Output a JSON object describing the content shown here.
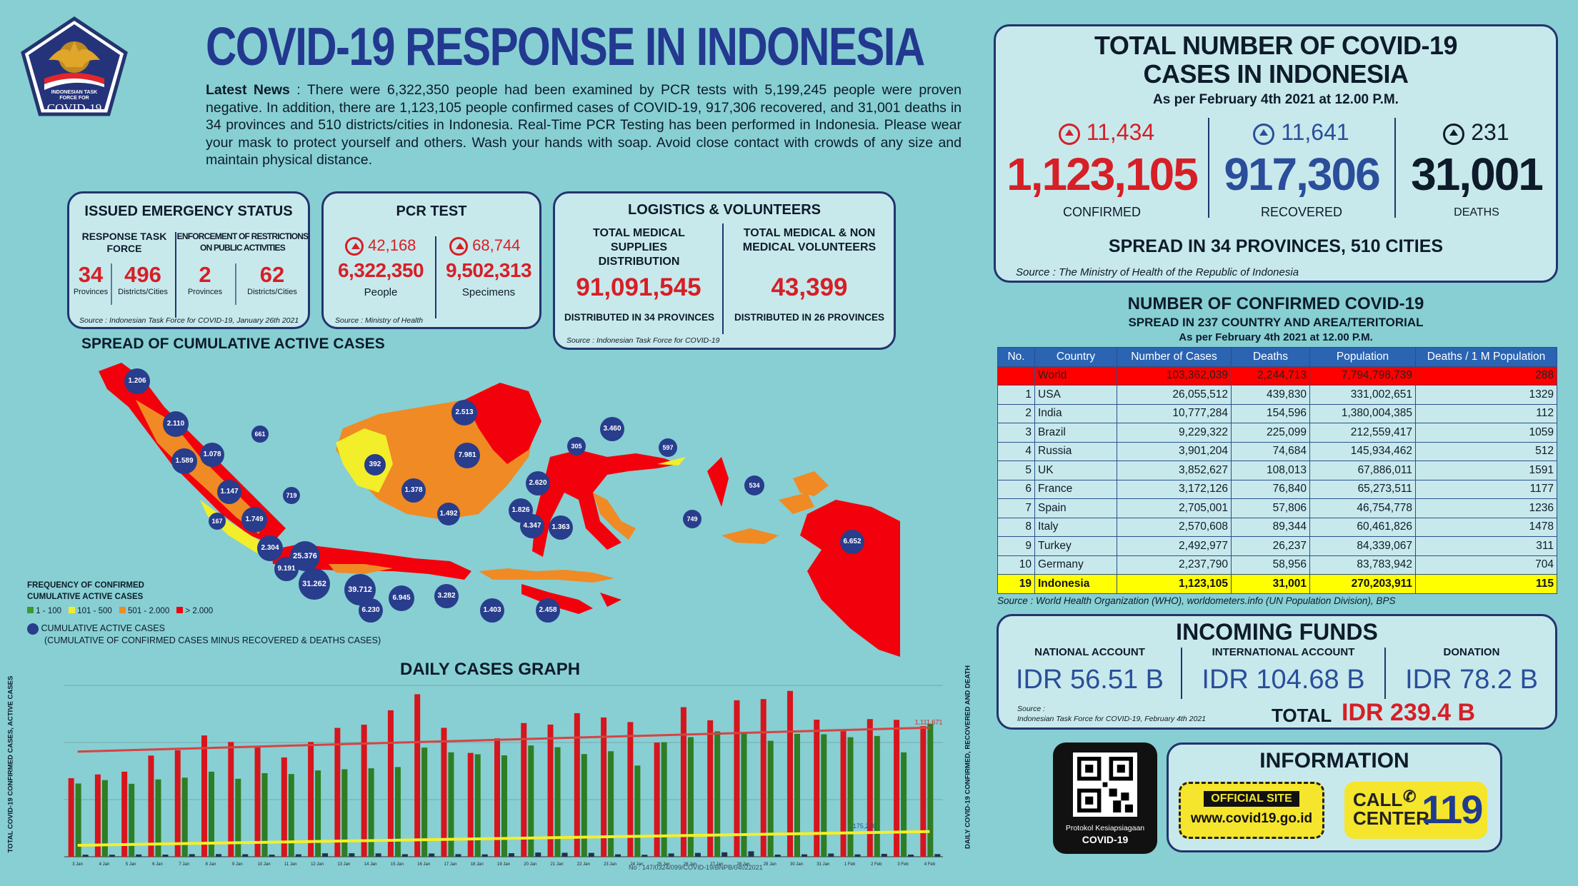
{
  "logo": {
    "line1": "INDONESIAN TASK",
    "line2": "FORCE FOR",
    "line3": "COVID-19"
  },
  "title": "COVID-19 RESPONSE IN INDONESIA",
  "news": {
    "prefix": "Latest News",
    "text": " : There were 6,322,350 people had been examined by PCR tests with 5,199,245 people were proven negative. In addition, there are 1,123,105 people confirmed cases of COVID-19, 917,306 recovered, and 31,001 deaths in 34 provinces and 510 districts/cities in Indonesia. Real-Time PCR Testing has been performed in Indonesia. Please wear your mask to protect yourself and others. Wash your hands with soap. Avoid close contact with crowds of any size and maintain physical distance."
  },
  "emergency": {
    "title": "ISSUED EMERGENCY STATUS",
    "col1": "RESPONSE TASK FORCE",
    "col2": "ENFORCEMENT OF RESTRICTIONS ON PUBLIC ACTIVITIES",
    "v1": "34",
    "l1": "Provinces",
    "v2": "496",
    "l2": "Districts/Cities",
    "v3": "2",
    "l3": "Provinces",
    "v4": "62",
    "l4": "Districts/Cities",
    "source": "Source : Indonesian Task Force for COVID-19, January 26th 2021"
  },
  "pcr": {
    "title": "PCR TEST",
    "inc1": "42,168",
    "inc2": "68,744",
    "v1": "6,322,350",
    "v2": "9,502,313",
    "l1": "People",
    "l2": "Specimens",
    "source": "Source : Ministry of Health"
  },
  "logistics": {
    "title": "LOGISTICS & VOLUNTEERS",
    "h1": "TOTAL MEDICAL SUPPLIES DISTRIBUTION",
    "h2": "TOTAL MEDICAL & NON MEDICAL VOLUNTEERS",
    "v1": "91,091,545",
    "v2": "43,399",
    "s1": "DISTRIBUTED IN 34 PROVINCES",
    "s2": "DISTRIBUTED IN 26 PROVINCES",
    "source": "Source : Indonesian Task Force for COVID-19"
  },
  "totals": {
    "title1": "TOTAL NUMBER OF COVID-19",
    "title2": "CASES IN INDONESIA",
    "date": "As per February 4th 2021 at 12.00 P.M.",
    "conf_inc": "11,434",
    "rec_inc": "11,641",
    "death_inc": "231",
    "confirmed": "1,123,105",
    "recovered": "917,306",
    "deaths": "31,001",
    "l_conf": "CONFIRMED",
    "l_rec": "RECOVERED",
    "l_death": "DEATHS",
    "spread": "SPREAD IN 34 PROVINCES, 510 CITIES",
    "source": "Source : The Ministry of Health of the Republic of Indonesia"
  },
  "world": {
    "title": "NUMBER OF CONFIRMED COVID-19",
    "sub": "SPREAD IN 237 COUNTRY AND AREA/TERITORIAL",
    "date": "As per February 4th 2021 at 12.00 P.M.",
    "headers": [
      "No.",
      "Country",
      "Number of Cases",
      "Deaths",
      "Population",
      "Deaths / 1 M Population"
    ],
    "rows": [
      [
        "",
        "World",
        "103,362,039",
        "2,244,713",
        "7,794,798,739",
        "288"
      ],
      [
        "1",
        "USA",
        "26,055,512",
        "439,830",
        "331,002,651",
        "1329"
      ],
      [
        "2",
        "India",
        "10,777,284",
        "154,596",
        "1,380,004,385",
        "112"
      ],
      [
        "3",
        "Brazil",
        "9,229,322",
        "225,099",
        "212,559,417",
        "1059"
      ],
      [
        "4",
        "Russia",
        "3,901,204",
        "74,684",
        "145,934,462",
        "512"
      ],
      [
        "5",
        "UK",
        "3,852,627",
        "108,013",
        "67,886,011",
        "1591"
      ],
      [
        "6",
        "France",
        "3,172,126",
        "76,840",
        "65,273,511",
        "1177"
      ],
      [
        "7",
        "Spain",
        "2,705,001",
        "57,806",
        "46,754,778",
        "1236"
      ],
      [
        "8",
        "Italy",
        "2,570,608",
        "89,344",
        "60,461,826",
        "1478"
      ],
      [
        "9",
        "Turkey",
        "2,492,977",
        "26,237",
        "84,339,067",
        "311"
      ],
      [
        "10",
        "Germany",
        "2,237,790",
        "58,956",
        "83,783,942",
        "704"
      ],
      [
        "19",
        "Indonesia",
        "1,123,105",
        "31,001",
        "270,203,911",
        "115"
      ]
    ],
    "source": "Source : World Health Organization (WHO), worldometers.info (UN Population Division), BPS"
  },
  "funds": {
    "title": "INCOMING FUNDS",
    "h1": "NATIONAL ACCOUNT",
    "h2": "INTERNATIONAL ACCOUNT",
    "h3": "DONATION",
    "v1": "IDR 56.51 B",
    "v2": "IDR 104.68 B",
    "v3": "IDR 78.2 B",
    "total_label": "TOTAL",
    "total": "IDR 239.4 B",
    "src1": "Source :",
    "src2": "Indonesian Task Force for COVID-19, February 4th 2021"
  },
  "qr": {
    "l1": "Protokol Kesiapsiagaan",
    "l2": "COVID-19"
  },
  "info": {
    "title": "INFORMATION",
    "site_label": "OFFICIAL SITE",
    "site_url": "www.covid19.go.id",
    "call1": "CALL",
    "call2": "CENTER",
    "call_num": "119"
  },
  "map": {
    "title": "SPREAD OF CUMULATIVE ACTIVE CASES",
    "legend_title1": "FREQUENCY OF CONFIRMED",
    "legend_title2": "CUMULATIVE ACTIVE CASES",
    "legend": [
      {
        "label": "1 - 100",
        "color": "#3a9b2e"
      },
      {
        "label": "101 - 500",
        "color": "#f2ee2a"
      },
      {
        "label": "501 - 2.000",
        "color": "#f08a24"
      },
      {
        "label": "> 2.000",
        "color": "#f2000c"
      }
    ],
    "bubble_label": "CUMULATIVE ACTIVE CASES",
    "bubble_note": "(CUMULATIVE OF CONFIRMED CASES MINUS RECOVERED & DEATHS CASES)",
    "bubbles": [
      "1.206",
      "2.110",
      "661",
      "1.589",
      "1.078",
      "1.147",
      "719",
      "167",
      "1.749",
      "2.304",
      "25.376",
      "9.191",
      "31.262",
      "39.712",
      "6.230",
      "6.945",
      "3.282",
      "1.403",
      "2.458",
      "2.513",
      "7.981",
      "392",
      "1.378",
      "1.492",
      "305",
      "3.460",
      "597",
      "2.620",
      "1.826",
      "4.347",
      "1.363",
      "749",
      "534",
      "6.652"
    ]
  },
  "graph": {
    "title": "DAILY CASES GRAPH",
    "ylabel_left": "TOTAL COVID-19 CONFIRMED CASES, ACTIVE CASES",
    "ylabel_right": "DAILY COVID-19 CONFIRMED, RECOVERED AND DEATH",
    "end_total": "1,111,671",
    "active_label": "175,236",
    "footer": "No : 147/0324/099/COVID-19/BNPB/04022021",
    "x": [
      "3 Jan",
      "4 Jan",
      "5 Jan",
      "6 Jan",
      "7 Jan",
      "8 Jan",
      "9 Jan",
      "10 Jan",
      "11 Jan",
      "12 Jan",
      "13 Jan",
      "14 Jan",
      "15 Jan",
      "16 Jan",
      "17 Jan",
      "18 Jan",
      "19 Jan",
      "20 Jan",
      "21 Jan",
      "22 Jan",
      "23 Jan",
      "24 Jan",
      "25 Jan",
      "26 Jan",
      "27 Jan",
      "28 Jan",
      "29 Jan",
      "30 Jan",
      "31 Jan",
      "1 Feb",
      "2 Feb",
      "3 Feb",
      "4 Feb"
    ],
    "series": [
      {
        "name": "Daily Confirmed Cases of COVID-19",
        "values": [
          6877,
          7203,
          7445,
          8854,
          9321,
          10617,
          10046,
          9640,
          8692,
          10047,
          11278,
          11557,
          12818,
          14224,
          11287,
          9086,
          10365,
          11703,
          11568,
          12568,
          12191,
          11788,
          9994,
          13094,
          11948,
          13695,
          13802,
          14518,
          12001,
          10994,
          12048,
          11984,
          11434
        ]
      },
      {
        "name": "Recovered",
        "values": [
          6410,
          6709,
          6385,
          6767,
          6924,
          7446,
          6826,
          7313,
          7239,
          7556,
          7657,
          7741,
          7851,
          9552,
          9141,
          8970,
          8873,
          9741,
          9587,
          8987,
          9233,
          7981,
          10028,
          10468,
          10974,
          10792,
          10149,
          10758,
          10719,
          10461,
          10570,
          9135,
          11641
        ]
      },
      {
        "name": "Death",
        "values": [
          179,
          177,
          198,
          187,
          224,
          233,
          219,
          182,
          214,
          302,
          306,
          295,
          220,
          283,
          228,
          208,
          308,
          367,
          346,
          336,
          211,
          171,
          287,
          336,
          387,
          476,
          187,
          210,
          279,
          204,
          253,
          189,
          231
        ]
      }
    ]
  }
}
